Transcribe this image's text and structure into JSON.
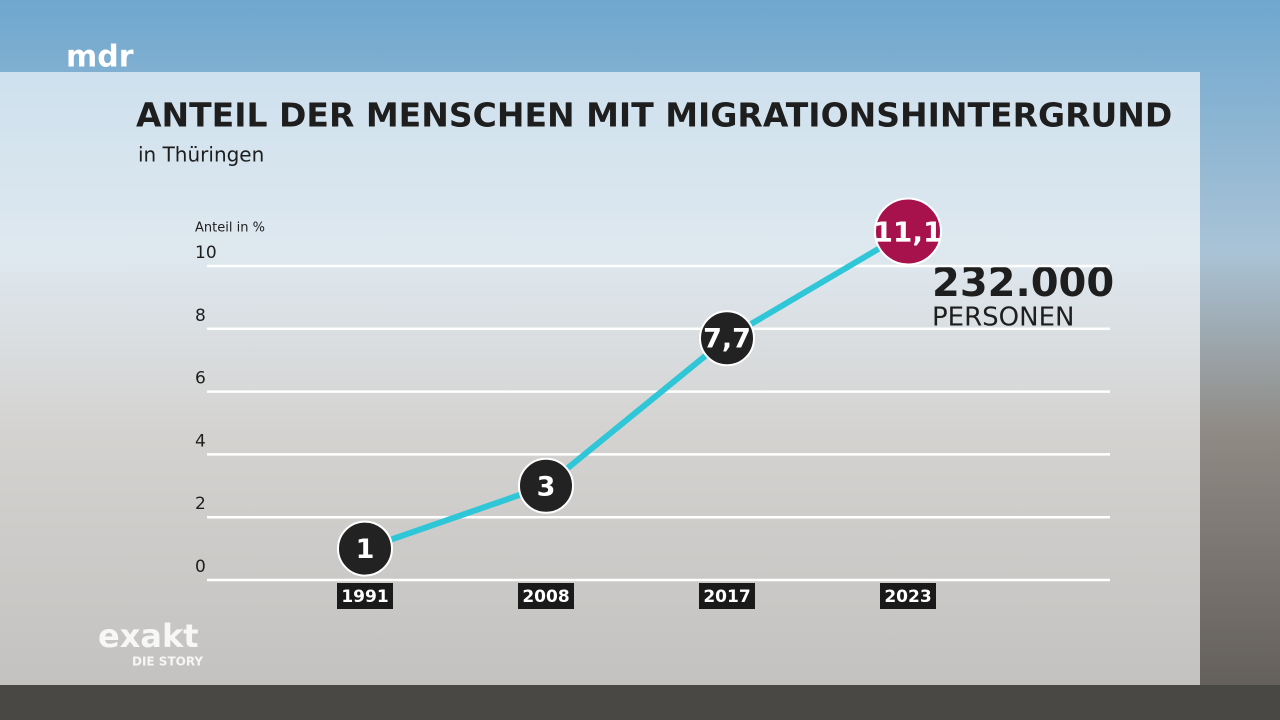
{
  "brand": {
    "channel": "mdr",
    "show": "exakt",
    "show_sub": "DIE STORY"
  },
  "chart_data": {
    "type": "line",
    "title": "ANTEIL DER MENSCHEN MIT MIGRATIONSHINTERGRUND",
    "subtitle": "in Thüringen",
    "y_label": "Anteil in %",
    "categories": [
      "1991",
      "2008",
      "2017",
      "2023"
    ],
    "values": [
      1,
      3,
      7.7,
      11.1
    ],
    "value_labels": [
      "1",
      "3",
      "7,7",
      "11,1"
    ],
    "color": "#2fc6d8",
    "marker_color": "#222222",
    "highlight_color": "#a8124c",
    "ylim": [
      0,
      10
    ],
    "yticks": [
      0,
      2,
      4,
      6,
      8,
      10
    ],
    "grid": true,
    "annotations": [
      "232.000",
      "PERSONEN"
    ]
  }
}
